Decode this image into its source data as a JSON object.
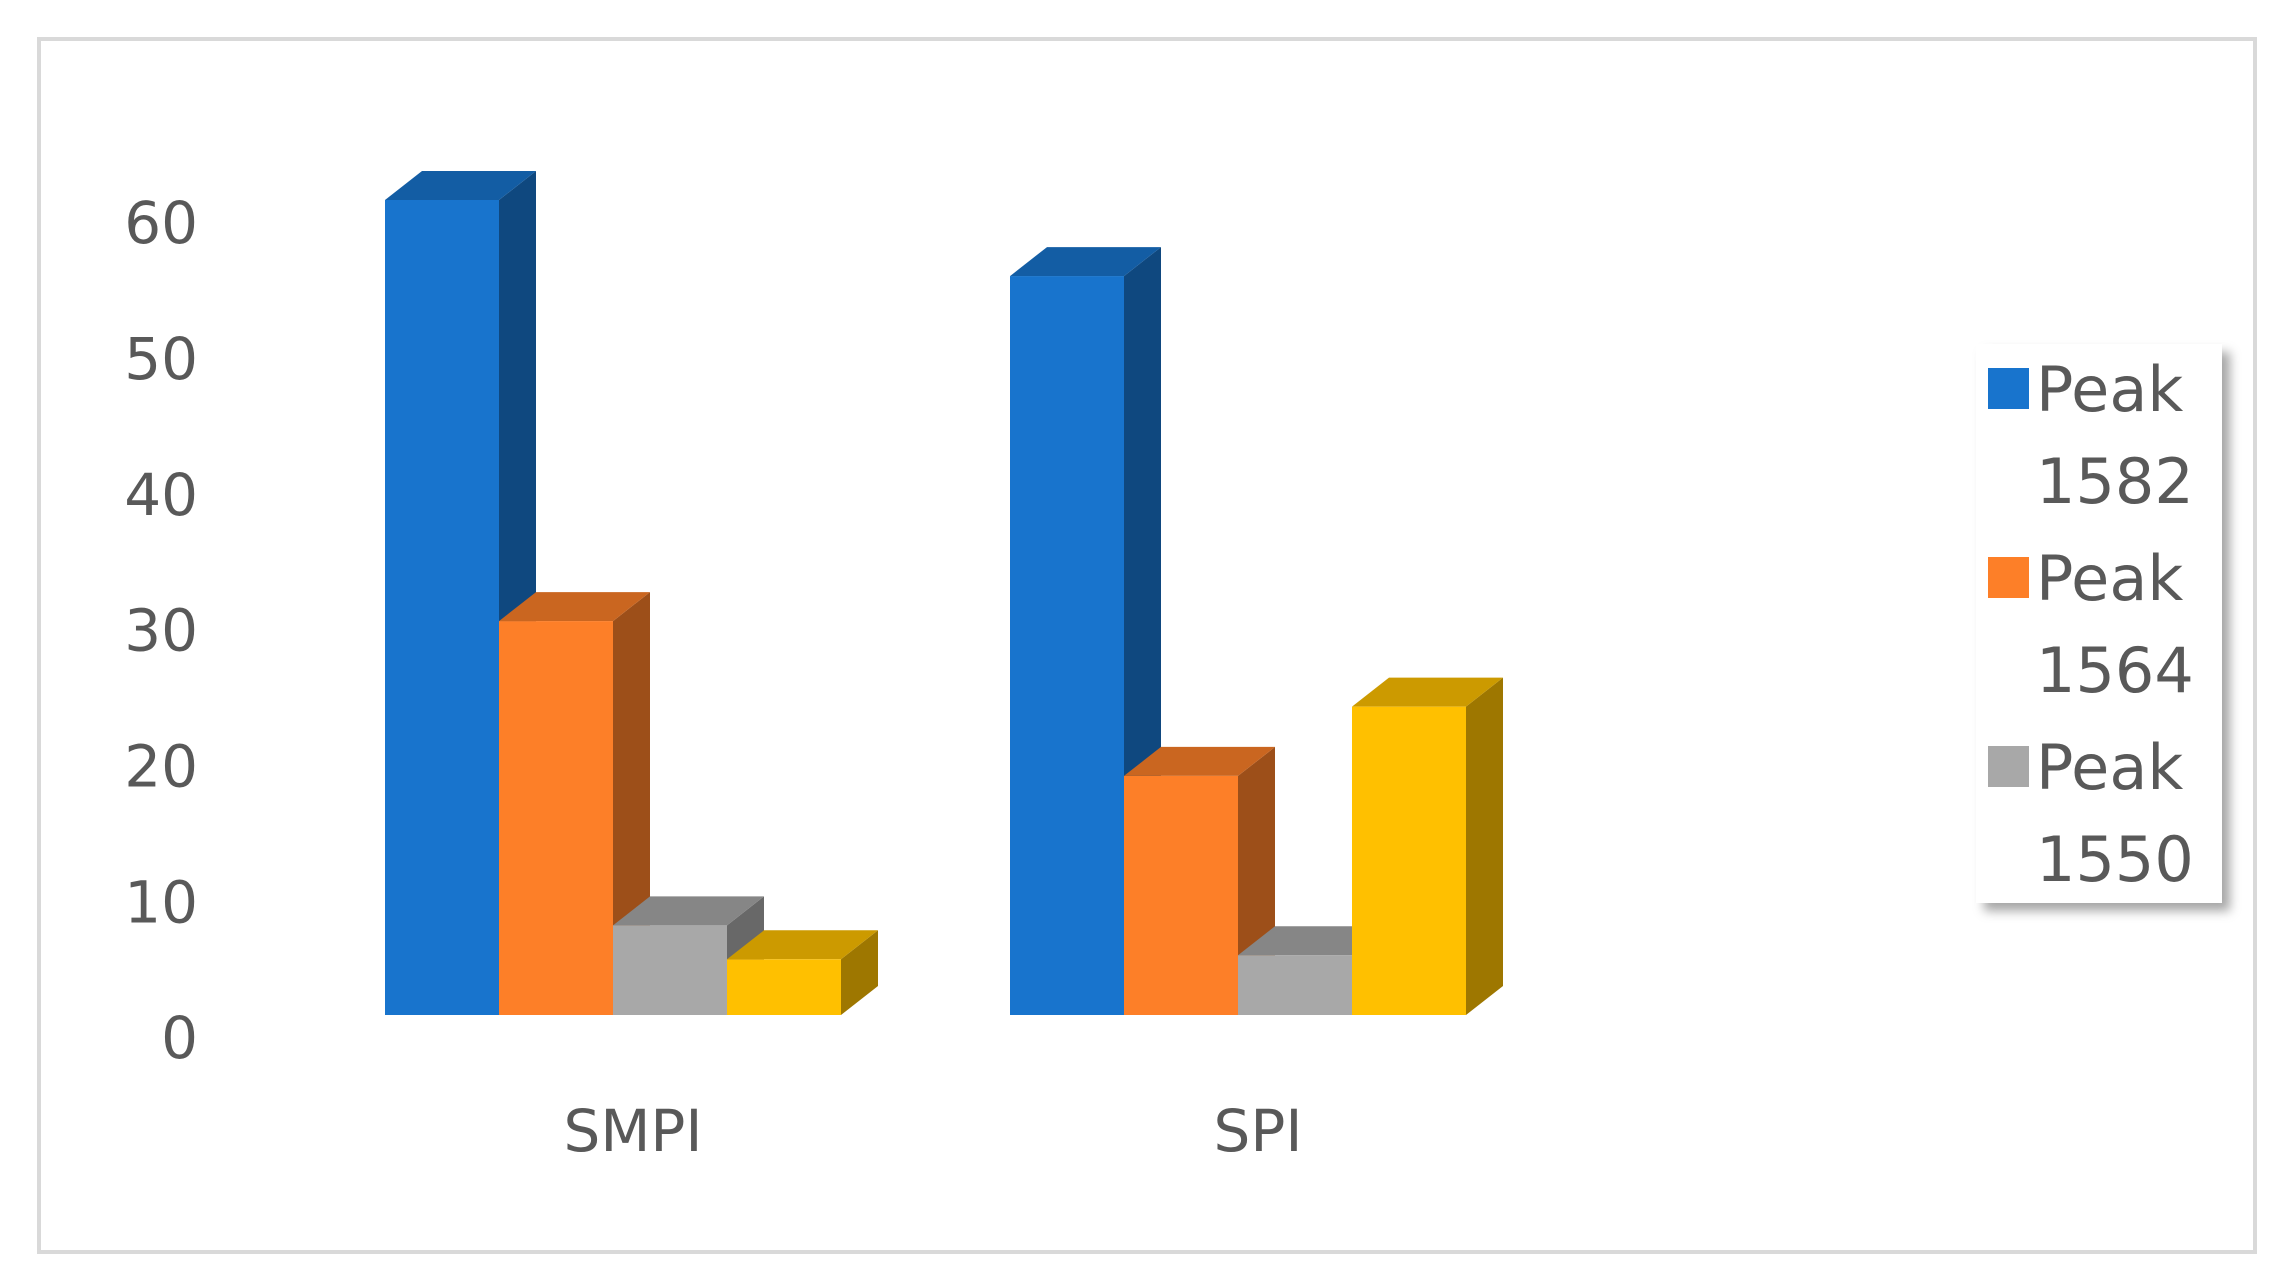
{
  "chart_data": {
    "type": "bar3d",
    "categories": [
      "SMPI",
      "SPI"
    ],
    "series": [
      {
        "name": "Peak 1582",
        "color": "#1874cd",
        "values": [
          60,
          54.4
        ]
      },
      {
        "name": "Peak 1564",
        "color": "#fd7f28",
        "values": [
          29,
          17.6
        ]
      },
      {
        "name": "Peak 1550",
        "color": "#a8a8a8",
        "values": [
          6.6,
          4.4
        ]
      },
      {
        "color": "#ffc000",
        "values": [
          4.1,
          22.7
        ]
      }
    ],
    "ylim": [
      0,
      60
    ],
    "yticks": [
      0,
      10,
      20,
      30,
      40,
      50,
      60
    ],
    "grid": false,
    "legend": "right"
  }
}
